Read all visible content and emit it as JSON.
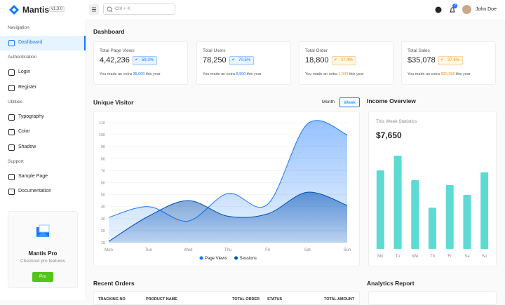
{
  "brand": {
    "name": "Mantis",
    "version": "v1.3.0"
  },
  "header": {
    "search_placeholder": "Ctrl + K",
    "notifications": "2",
    "user": "John Doe"
  },
  "sidebar": {
    "groups": [
      {
        "title": "Navigation",
        "items": [
          "Dashboard"
        ]
      },
      {
        "title": "Authentication",
        "items": [
          "Login",
          "Register"
        ]
      },
      {
        "title": "Utilities",
        "items": [
          "Typography",
          "Color",
          "Shadow"
        ]
      },
      {
        "title": "Support",
        "items": [
          "Sample Page",
          "Documentation"
        ]
      }
    ],
    "promo": {
      "title": "Mantis Pro",
      "subtitle": "Checkout pro features",
      "button": "Pro"
    }
  },
  "page_title": "Dashboard",
  "stats": [
    {
      "title": "Total Page Views",
      "value": "4,42,236",
      "change": "59.3%",
      "color": "#1677ff",
      "note_before": "You made an extra",
      "note_value": "35,000",
      "note_after": "this year"
    },
    {
      "title": "Total Users",
      "value": "78,250",
      "change": "70.5%",
      "color": "#1677ff",
      "note_before": "You made an extra",
      "note_value": "8,900",
      "note_after": "this year"
    },
    {
      "title": "Total Order",
      "value": "18,800",
      "change": "27.4%",
      "color": "#fa8c16",
      "note_before": "You made an extra",
      "note_value": "1,943",
      "note_after": "this year"
    },
    {
      "title": "Total Sales",
      "value": "$35,078",
      "change": "27.4%",
      "color": "#fa8c16",
      "note_before": "You made an extra",
      "note_value": "$20,395",
      "note_after": "this year"
    }
  ],
  "visitor": {
    "title": "Unique Visitor",
    "toggle": [
      "Month",
      "Week"
    ]
  },
  "income": {
    "title": "Income Overview",
    "subtitle": "This Week Statistics",
    "value": "$7,650"
  },
  "chart_data": [
    {
      "type": "area",
      "categories": [
        "Mon",
        "Tue",
        "Wed",
        "Thu",
        "Fri",
        "Sat",
        "Sun"
      ],
      "series": [
        {
          "name": "Page Views",
          "color": "#1677ff",
          "values": [
            31,
            40,
            28,
            51,
            42,
            109,
            100
          ]
        },
        {
          "name": "Sessions",
          "color": "#0050b3",
          "values": [
            11,
            32,
            45,
            32,
            34,
            52,
            41
          ]
        }
      ],
      "ylim": [
        10,
        110
      ],
      "yticks": [
        10,
        20,
        30,
        40,
        50,
        60,
        70,
        80,
        90,
        100,
        110
      ],
      "grid": true,
      "legend": "bottom"
    },
    {
      "type": "bar",
      "categories": [
        "Mo",
        "Tu",
        "We",
        "Th",
        "Fr",
        "Sa",
        "Su"
      ],
      "values": [
        80,
        95,
        70,
        42,
        65,
        55,
        78
      ],
      "color": "#5cdbd3",
      "ylim": [
        0,
        100
      ]
    }
  ],
  "orders": {
    "title": "Recent Orders",
    "columns": [
      "TRACKING NO",
      "PRODUCT NAME",
      "TOTAL ORDER",
      "STATUS",
      "TOTAL AMOUNT"
    ]
  },
  "analytics": {
    "title": "Analytics Report"
  }
}
